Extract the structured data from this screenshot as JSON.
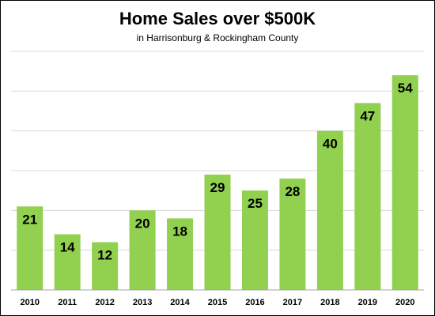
{
  "chart_data": {
    "type": "bar",
    "title": "Home Sales over $500K",
    "subtitle": "in Harrisonburg & Rockingham County",
    "xlabel": "",
    "ylabel": "",
    "categories": [
      "2010",
      "2011",
      "2012",
      "2013",
      "2014",
      "2015",
      "2016",
      "2017",
      "2018",
      "2019",
      "2020"
    ],
    "values": [
      21,
      14,
      12,
      20,
      18,
      29,
      25,
      28,
      40,
      47,
      54
    ],
    "ylim": [
      0,
      60
    ],
    "y_grid_step": 10,
    "grid": true,
    "legend": "none",
    "data_labels": true,
    "bar_color": "#92d050",
    "grid_color": "#d9d9d9",
    "axis_color": "#a6a6a6"
  }
}
